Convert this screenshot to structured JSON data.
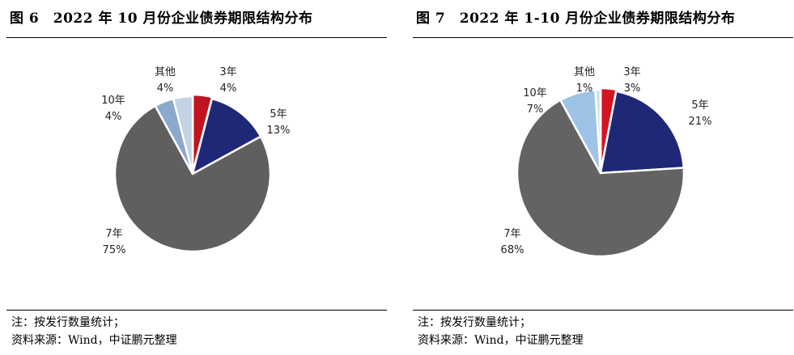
{
  "figures": [
    {
      "title": "图 6　2022 年 10 月份企业债券期限结构分布",
      "note": "注：按发行数量统计；",
      "source": "资料来源：Wind，中证鹏元整理",
      "chart_data": {
        "type": "pie",
        "slices": [
          {
            "name": "3年",
            "value": 4,
            "label": "4%",
            "color": "#c0141f"
          },
          {
            "name": "5年",
            "value": 13,
            "label": "13%",
            "color": "#1f2877"
          },
          {
            "name": "7年",
            "value": 75,
            "label": "75%",
            "color": "#5f5f5f"
          },
          {
            "name": "10年",
            "value": 4,
            "label": "4%",
            "color": "#8ba9cc"
          },
          {
            "name": "其他",
            "value": 4,
            "label": "4%",
            "color": "#c3d3e4"
          }
        ]
      }
    },
    {
      "title": "图 7　2022 年 1-10 月份企业债券期限结构分布",
      "note": "注：按发行数量统计；",
      "source": "资料来源：Wind，中证鹏元整理",
      "chart_data": {
        "type": "pie",
        "slices": [
          {
            "name": "3年",
            "value": 3,
            "label": "3%",
            "color": "#d41421"
          },
          {
            "name": "5年",
            "value": 21,
            "label": "21%",
            "color": "#1f2877"
          },
          {
            "name": "7年",
            "value": 68,
            "label": "68%",
            "color": "#636363"
          },
          {
            "name": "10年",
            "value": 7,
            "label": "7%",
            "color": "#9fc3e6"
          },
          {
            "name": "其他",
            "value": 1,
            "label": "1%",
            "color": "#cfe0f0"
          }
        ]
      }
    }
  ]
}
